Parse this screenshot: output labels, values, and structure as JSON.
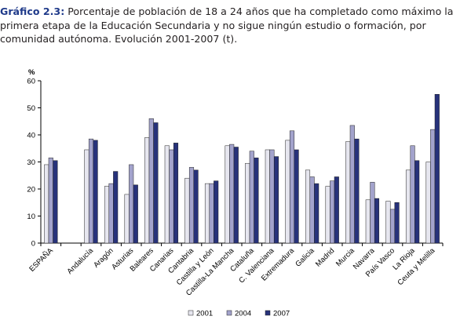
{
  "header": {
    "label": "Gráfico 2.3",
    "sep": ":",
    "text": "Porcentaje de población de 18 a 24 años que ha completado como máximo la primera etapa de la Educación Secundaria y no sigue ningún estudio o formación, por comunidad autónoma. Evolución 2001-2007 (t)."
  },
  "chart_data": {
    "type": "bar",
    "ylabel": "%",
    "ylim": [
      0,
      60
    ],
    "yticks": [
      "0",
      "10",
      "20",
      "30",
      "40",
      "50",
      "60"
    ],
    "grid": false,
    "legend_position": "bottom",
    "categories": [
      "ESPAÑA",
      "",
      "Andalucía",
      "Aragón",
      "Asturias",
      "Baleares",
      "Canarias",
      "Cantabria",
      "Castilla y León",
      "Castilla-La Mancha",
      "Cataluña",
      "C. Valenciana",
      "Extremadura",
      "Galicia",
      "Madrid",
      "Murcia",
      "Navarra",
      "País Vasco",
      "La Rioja",
      "Ceuta y Melilla"
    ],
    "series": [
      {
        "name": "2001",
        "color": "#e6e6ef",
        "values": [
          29,
          null,
          34.5,
          21,
          18,
          39,
          36,
          24,
          22,
          36,
          29.5,
          34.5,
          38,
          27,
          21,
          37.5,
          16,
          15.5,
          27,
          30
        ]
      },
      {
        "name": "2004",
        "color": "#a3a3cc",
        "values": [
          31.5,
          null,
          38.5,
          22,
          29,
          46,
          34.5,
          28,
          22,
          36.5,
          34,
          34.5,
          41.5,
          24.5,
          23,
          43.5,
          22.5,
          12.5,
          36,
          42
        ]
      },
      {
        "name": "2007",
        "color": "#27327a",
        "values": [
          30.5,
          null,
          38,
          26.5,
          21.5,
          44.5,
          37,
          27,
          23,
          35.5,
          31.5,
          32,
          34.5,
          22,
          24.5,
          38.5,
          16.5,
          15,
          30.5,
          55
        ]
      }
    ]
  }
}
